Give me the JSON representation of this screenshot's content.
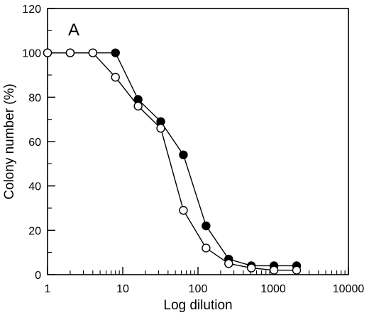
{
  "chart_data": {
    "type": "scatter",
    "panel_label": "A",
    "xlabel": "Log dilution",
    "ylabel": "Colony number (%)",
    "xscale": "log",
    "xlim": [
      1,
      10000
    ],
    "ylim": [
      0,
      120
    ],
    "x_ticks": [
      "1",
      "10",
      "100",
      "1000",
      "10000"
    ],
    "y_ticks": [
      "0",
      "20",
      "40",
      "60",
      "80",
      "100",
      "120"
    ],
    "grid": false,
    "legend": "none",
    "series": [
      {
        "marker": "filled-circle",
        "color": "#000000",
        "x": [
          1,
          2,
          4,
          8,
          16,
          32,
          64,
          128,
          256,
          512,
          1024,
          2048
        ],
        "y": [
          100,
          100,
          100,
          100,
          79,
          69,
          54,
          22,
          7,
          4,
          4,
          4
        ]
      },
      {
        "marker": "open-circle",
        "color": "#000000",
        "x": [
          1,
          2,
          4,
          8,
          16,
          32,
          64,
          128,
          256,
          512,
          1024,
          2048
        ],
        "y": [
          100,
          100,
          100,
          89,
          76,
          66,
          29,
          12,
          5,
          3,
          2,
          2
        ]
      }
    ]
  }
}
